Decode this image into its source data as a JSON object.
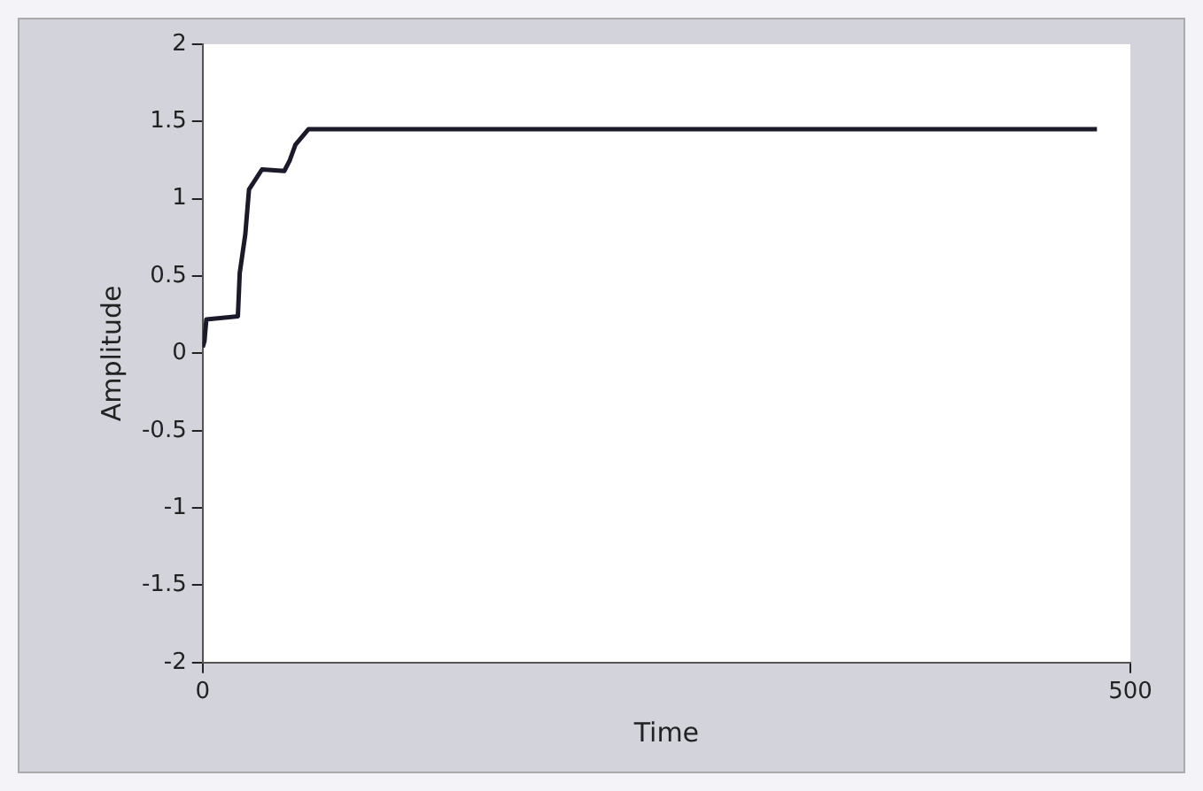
{
  "chart_data": {
    "type": "line",
    "xlabel": "Time",
    "ylabel": "Amplitude",
    "x": [
      0,
      1,
      2,
      19,
      20,
      23,
      25,
      32,
      44,
      47,
      50,
      57,
      482
    ],
    "series": [
      {
        "color": "#1a1a2a",
        "values": [
          0.04,
          0.08,
          0.22,
          0.24,
          0.52,
          0.77,
          1.06,
          1.19,
          1.18,
          1.25,
          1.35,
          1.45,
          1.45
        ]
      }
    ],
    "xlim": [
      0,
      500
    ],
    "xticks": [
      0,
      500
    ],
    "ylim": [
      -2,
      2
    ],
    "yticks": [
      -2,
      -1.5,
      -1,
      -0.5,
      0,
      0.5,
      1,
      1.5,
      2
    ],
    "grid": false,
    "legend": false,
    "marker": "none",
    "line_style": "solid"
  }
}
